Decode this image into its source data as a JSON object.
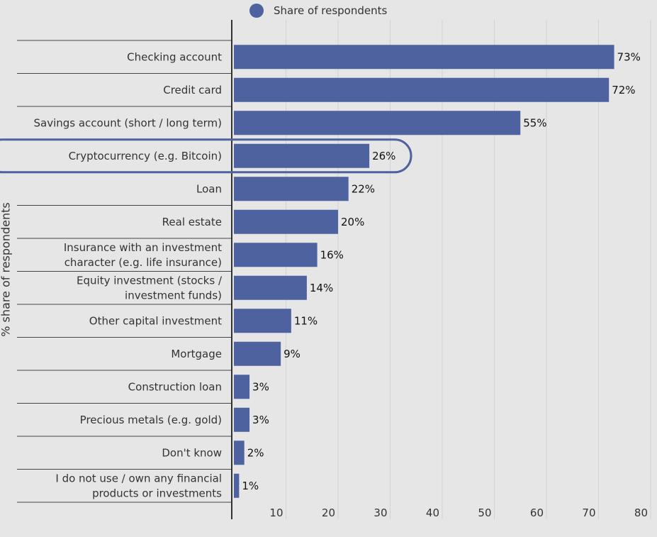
{
  "chart_data": {
    "type": "bar",
    "orientation": "horizontal",
    "ylabel": "% share of respondents",
    "legend": {
      "label": "Share of respondents",
      "placement": "top"
    },
    "categories": [
      [
        "Checking account"
      ],
      [
        "Credit card"
      ],
      [
        "Savings account (short / long term)"
      ],
      [
        "Cryptocurrency (e.g. Bitcoin)"
      ],
      [
        "Loan"
      ],
      [
        "Real estate"
      ],
      [
        "Insurance with an investment",
        "character (e.g. life insurance)"
      ],
      [
        "Equity investment (stocks /",
        "investment funds)"
      ],
      [
        "Other capital investment"
      ],
      [
        "Mortgage"
      ],
      [
        "Construction loan"
      ],
      [
        "Precious metals (e.g. gold)"
      ],
      [
        "Don't know"
      ],
      [
        "I do not use / own any financial",
        "products or investments"
      ]
    ],
    "series": [
      {
        "name": "Share of respondents",
        "values": [
          73,
          72,
          55,
          26,
          22,
          20,
          16,
          14,
          11,
          9,
          3,
          3,
          2,
          1
        ]
      }
    ],
    "value_labels": [
      "73%",
      "72%",
      "55%",
      "26%",
      "22%",
      "20%",
      "16%",
      "14%",
      "11%",
      "9%",
      "3%",
      "3%",
      "2%",
      "1%"
    ],
    "xlim": [
      0,
      80
    ],
    "xticks": [
      10,
      20,
      30,
      40,
      50,
      60,
      70,
      80
    ],
    "grid": true,
    "highlighted_category": "Cryptocurrency (e.g. Bitcoin)",
    "colors": {
      "bar": "#4f62a0",
      "highlight_outline": "#4f62a0",
      "grid": "#d2d2d2",
      "background": "#e6e6e6"
    }
  }
}
